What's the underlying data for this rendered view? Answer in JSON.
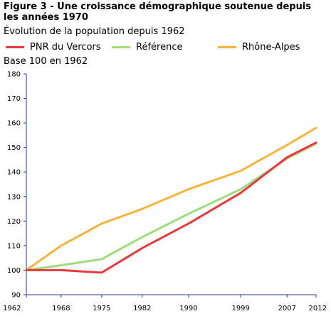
{
  "header": {
    "title": "Figure 3 - Une croissance démographique soutenue depuis les années 1970",
    "subtitle": "Évolution de la population depuis 1962"
  },
  "base_label": "Base 100 en 1962",
  "legend": [
    {
      "label": "PNR du Vercors",
      "color": "#e8393c"
    },
    {
      "label": "Référence",
      "color": "#9edc7c"
    },
    {
      "label": "Rhône-Alpes",
      "color": "#f6b43c"
    }
  ],
  "chart_data": {
    "type": "line",
    "title": "Figure 3 - Une croissance démographique soutenue depuis les années 1970",
    "subtitle": "Évolution de la population depuis 1962",
    "ylabel": "Base 100 en 1962",
    "x": [
      1962,
      1968,
      1975,
      1982,
      1990,
      1999,
      2007,
      2012
    ],
    "x_tick_labels": [
      "1962",
      "1968",
      "1975",
      "1982",
      "1990",
      "1999",
      "2007",
      "2012"
    ],
    "ylim": [
      90,
      180
    ],
    "y_ticks": [
      90,
      100,
      110,
      120,
      130,
      140,
      150,
      160,
      170,
      180
    ],
    "grid": false,
    "legend_position": "top",
    "series": [
      {
        "name": "PNR du Vercors",
        "color": "#e8393c",
        "values": [
          100,
          100,
          99,
          109,
          119,
          131.5,
          146,
          152
        ]
      },
      {
        "name": "Référence",
        "color": "#9edc7c",
        "values": [
          100,
          102,
          104.5,
          113.5,
          123,
          133,
          145.5,
          151.5
        ]
      },
      {
        "name": "Rhône-Alpes",
        "color": "#f6b43c",
        "values": [
          100,
          110,
          119,
          125,
          133,
          140.5,
          151,
          158
        ]
      }
    ]
  }
}
